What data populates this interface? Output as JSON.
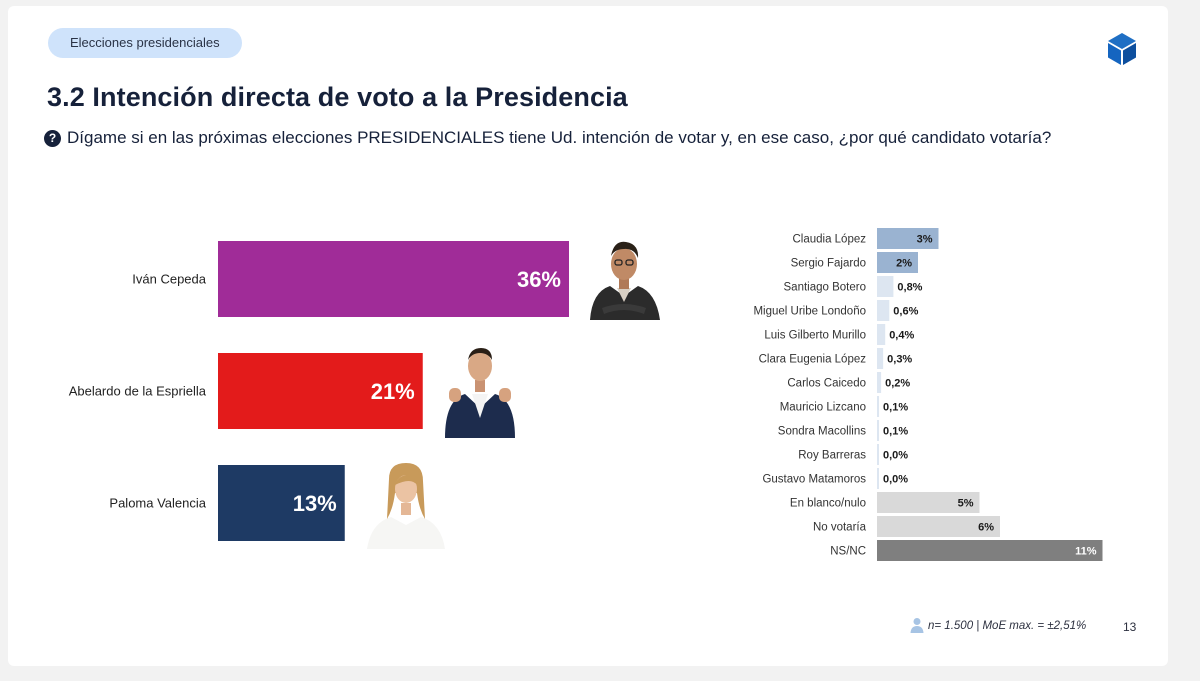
{
  "header": {
    "section_pill": "Elecciones presidenciales",
    "title": "3.2 Intención directa de voto a la Presidencia",
    "question_icon": "?",
    "question": "Dígame si en las próximas elecciones PRESIDENCIALES tiene Ud. intención de votar y, en ese caso, ¿por qué candidato votaría?"
  },
  "icons": {
    "brand": "cube-logo-icon",
    "question": "question-circle-icon",
    "sample": "person-icon"
  },
  "chart_data": [
    {
      "type": "bar",
      "orientation": "horizontal",
      "categories": [
        "Iván Cepeda",
        "Abelardo de la Espriella",
        "Paloma Valencia"
      ],
      "values": [
        36,
        21,
        13
      ],
      "labels": [
        "36%",
        "21%",
        "13%"
      ],
      "colors": [
        "#a02c98",
        "#e31b1b",
        "#1e3a64"
      ],
      "unit": "%"
    },
    {
      "type": "bar",
      "orientation": "horizontal",
      "categories": [
        "Claudia López",
        "Sergio Fajardo",
        "Santiago Botero",
        "Miguel Uribe Londoño",
        "Luis Gilberto Murillo",
        "Clara Eugenia López",
        "Carlos Caicedo",
        "Mauricio Lizcano",
        "Sondra Macollins",
        "Roy Barreras",
        "Gustavo Matamoros",
        "En blanco/nulo",
        "No votaría",
        "NS/NC"
      ],
      "values": [
        3,
        2,
        0.8,
        0.6,
        0.4,
        0.3,
        0.2,
        0.1,
        0.1,
        0.0,
        0.0,
        5,
        6,
        11
      ],
      "labels": [
        "3%",
        "2%",
        "0,8%",
        "0,6%",
        "0,4%",
        "0,3%",
        "0,2%",
        "0,1%",
        "0,1%",
        "0,0%",
        "0,0%",
        "5%",
        "6%",
        "11%"
      ],
      "colors": [
        "#9ab3d1",
        "#9ab3d1",
        "#dde6f1",
        "#dde6f1",
        "#dde6f1",
        "#dde6f1",
        "#dde6f1",
        "#dde6f1",
        "#dde6f1",
        "#dde6f1",
        "#dde6f1",
        "#d9d9d9",
        "#d9d9d9",
        "#7f7f7f"
      ],
      "unit": "%"
    }
  ],
  "footer": {
    "sample_note": "n= 1.500  | MoE max. = ±2,51%",
    "page_number": "13"
  }
}
